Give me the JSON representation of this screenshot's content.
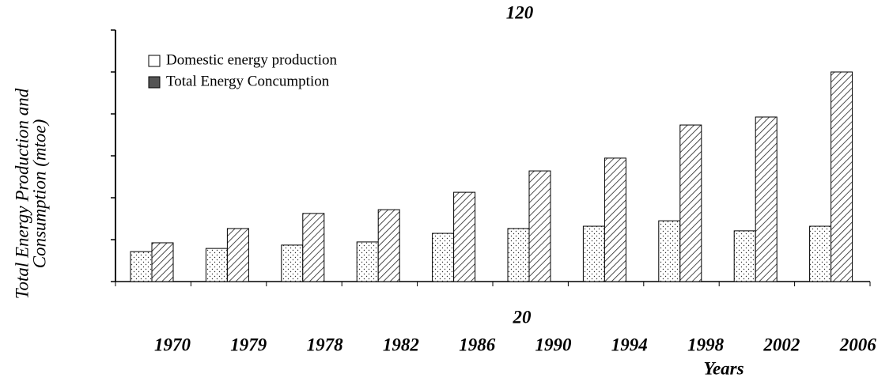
{
  "chart_data": {
    "type": "bar",
    "y_label": [
      "Total Energy Production and",
      "Consumption (mtoe)"
    ],
    "x_label": "Years",
    "annotations": [
      "120",
      "20"
    ],
    "categories": [
      "1970",
      "1979",
      "1978",
      "1982",
      "1986",
      "1990",
      "1994",
      "1998",
      "2002",
      "2006"
    ],
    "series": [
      {
        "name": "Domestic energy production",
        "color": "#ffffff",
        "values": [
          14.3,
          15.8,
          17.4,
          18.9,
          23,
          25.3,
          26.4,
          29,
          24.2,
          26.4
        ]
      },
      {
        "name": "Total Energy Concumption",
        "color": "#555555",
        "values": [
          18.5,
          25.3,
          32.5,
          34.3,
          42.6,
          52.8,
          58.9,
          74.7,
          78.5,
          100
        ]
      }
    ],
    "ylim": [
      0,
      120
    ],
    "yticks": [
      0,
      20,
      40,
      60,
      80,
      100,
      120
    ],
    "legend": "upper left"
  }
}
